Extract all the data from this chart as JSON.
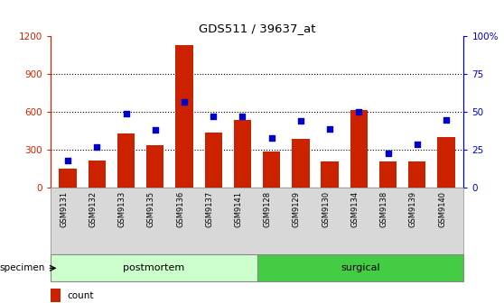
{
  "title": "GDS511 / 39637_at",
  "categories": [
    "GSM9131",
    "GSM9132",
    "GSM9133",
    "GSM9135",
    "GSM9136",
    "GSM9137",
    "GSM9141",
    "GSM9128",
    "GSM9129",
    "GSM9130",
    "GSM9134",
    "GSM9138",
    "GSM9139",
    "GSM9140"
  ],
  "counts": [
    155,
    215,
    430,
    340,
    1130,
    440,
    540,
    290,
    390,
    210,
    620,
    210,
    210,
    400
  ],
  "percentiles": [
    18,
    27,
    49,
    38,
    57,
    47,
    47,
    33,
    44,
    39,
    50,
    23,
    29,
    45
  ],
  "postmortem_count": 7,
  "surgical_count": 7,
  "ylim_left": [
    0,
    1200
  ],
  "ylim_right": [
    0,
    100
  ],
  "yticks_left": [
    0,
    300,
    600,
    900,
    1200
  ],
  "yticks_right": [
    0,
    25,
    50,
    75,
    100
  ],
  "bar_color": "#cc2200",
  "dot_color": "#0000cc",
  "postmortem_color": "#ccffcc",
  "surgical_color": "#44cc44",
  "bg_color": "#ffffff",
  "figwidth": 5.58,
  "figheight": 3.36,
  "dpi": 100
}
